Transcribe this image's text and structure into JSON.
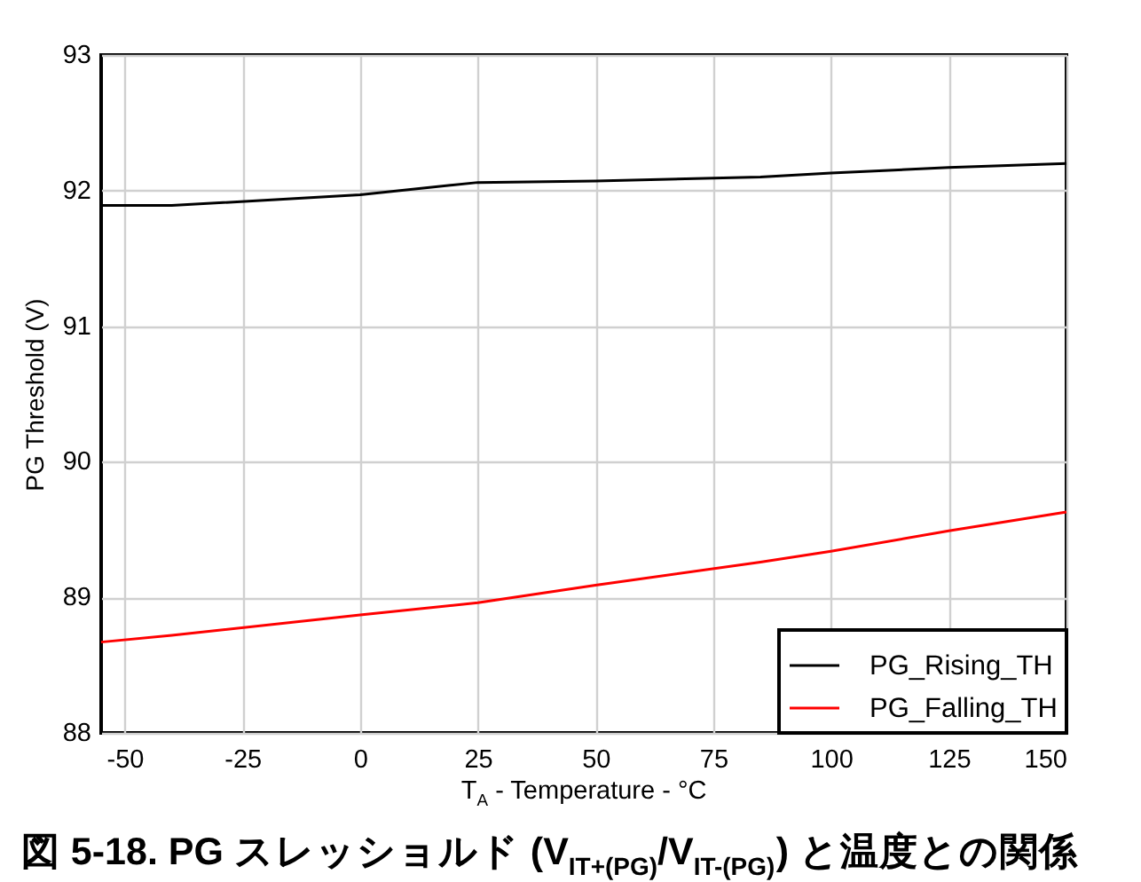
{
  "chart_data": {
    "type": "line",
    "title": "図 5-18. PG スレッショルド (V$_{IT+(PG)}$/V$_{IT-(PG)}$) と温度との関係",
    "xlabel": "T$_{A}$ - Temperature - °C",
    "ylabel": "PG Threshold (V)",
    "x": [
      -55,
      -40,
      0,
      25,
      50,
      85,
      100,
      125,
      150
    ],
    "series": [
      {
        "name": "PG_Rising_TH",
        "color": "#000000",
        "values": [
          91.89,
          91.89,
          91.97,
          92.06,
          92.07,
          92.1,
          92.13,
          92.17,
          92.2
        ]
      },
      {
        "name": "PG_Falling_TH",
        "color": "#ff0000",
        "values": [
          88.67,
          88.72,
          88.87,
          88.96,
          89.09,
          89.26,
          89.34,
          89.49,
          89.63
        ]
      }
    ],
    "xlim": [
      -55,
      150
    ],
    "xticks": [
      -50,
      -25,
      0,
      25,
      50,
      75,
      100,
      125,
      150
    ],
    "ylim": [
      88,
      93
    ],
    "yticks": [
      88,
      89,
      90,
      91,
      92,
      93
    ],
    "grid": true,
    "legend": "bottom right",
    "line_style": "solid"
  }
}
